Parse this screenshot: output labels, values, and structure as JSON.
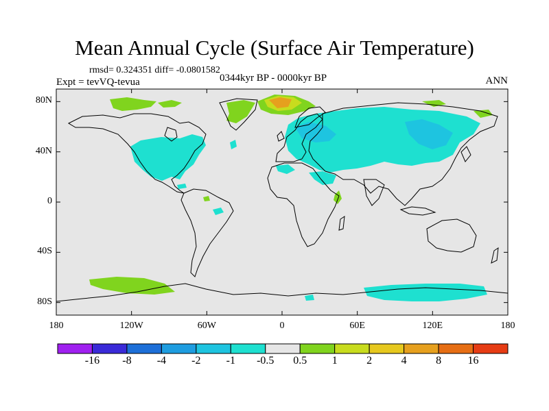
{
  "title": "Mean Annual Cycle (Surface Air Temperature)",
  "stats": "rmsd= 0.324351 diff= -0.0801582",
  "experiment": "Expt = tevVQ-tevua",
  "period": "0344kyr BP - 0000kyr BP",
  "season": "ANN",
  "map": {
    "lat_ticks": [
      {
        "label": "80N",
        "lat": 80
      },
      {
        "label": "40N",
        "lat": 40
      },
      {
        "label": "0",
        "lat": 0
      },
      {
        "label": "40S",
        "lat": -40
      },
      {
        "label": "80S",
        "lat": -80
      }
    ],
    "lon_ticks": [
      {
        "label": "180",
        "lon": -180
      },
      {
        "label": "120W",
        "lon": -120
      },
      {
        "label": "60W",
        "lon": -60
      },
      {
        "label": "0",
        "lon": 0
      },
      {
        "label": "60E",
        "lon": 60
      },
      {
        "label": "120E",
        "lon": 120
      },
      {
        "label": "180",
        "lon": 180
      }
    ],
    "lat_range": [
      -90,
      90
    ],
    "lon_range": [
      -180,
      180
    ],
    "background_color": "#e6e6e6"
  },
  "colorbar": {
    "colors": [
      "#a020f0",
      "#3a2ad8",
      "#1d6fd8",
      "#1e9de0",
      "#1ec4e0",
      "#1ee0d0",
      "#e6e6e6",
      "#80d41e",
      "#c8dc1e",
      "#e6c81e",
      "#e6a01e",
      "#e66e14",
      "#e63c14"
    ],
    "labels": [
      "-16",
      "-8",
      "-4",
      "-2",
      "-1",
      "-0.5",
      "0.5",
      "1",
      "2",
      "4",
      "8",
      "16"
    ]
  },
  "anomaly_colors": {
    "cyan": "#1ee0d0",
    "light_blue": "#1ec4e0",
    "blue": "#1e9de0",
    "green": "#80d41e",
    "yellow": "#c8dc1e",
    "orange": "#e6a01e"
  }
}
